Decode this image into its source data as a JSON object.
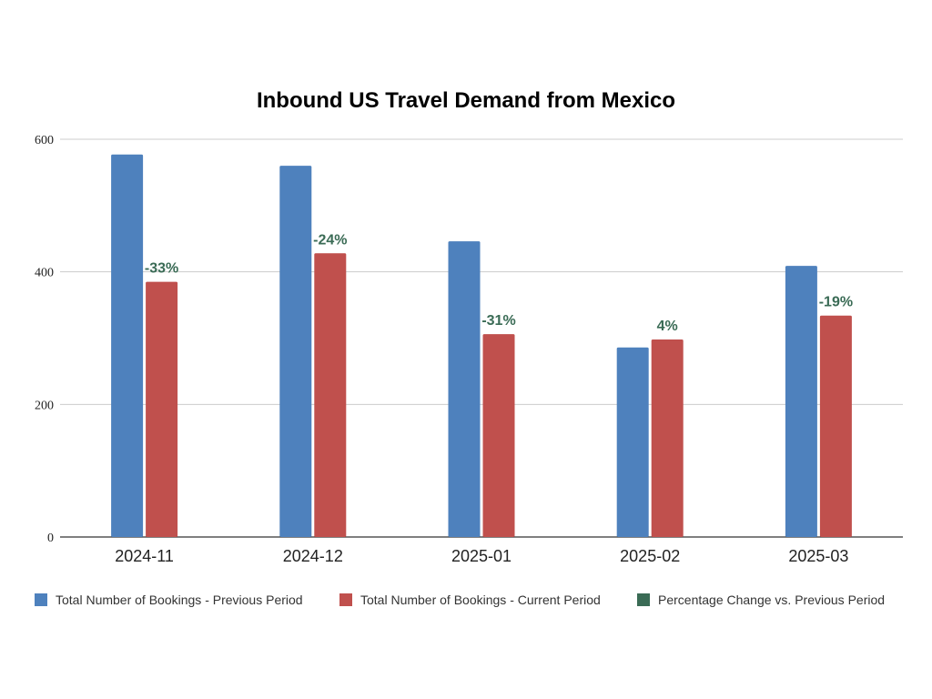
{
  "chart_data": {
    "type": "bar",
    "title": "Inbound US Travel Demand from Mexico",
    "xlabel": "",
    "ylabel": "",
    "categories": [
      "2024-11",
      "2024-12",
      "2025-01",
      "2025-02",
      "2025-03"
    ],
    "ylim": [
      0,
      600
    ],
    "yticks": [
      0,
      200,
      400,
      600
    ],
    "grid": true,
    "legend_position": "bottom",
    "series": [
      {
        "name": "Total Number of Bookings - Previous Period",
        "color": "#4e81bd",
        "values": [
          577,
          560,
          446,
          286,
          409
        ]
      },
      {
        "name": "Total Number of Bookings - Current Period",
        "color": "#c0504d",
        "values": [
          385,
          428,
          306,
          298,
          334
        ]
      },
      {
        "name": "Percentage Change vs. Previous Period",
        "color": "#3a6b55",
        "values": [
          -33,
          -24,
          -31,
          4,
          -19
        ]
      }
    ],
    "data_labels": [
      "-33%",
      "-24%",
      "-31%",
      "4%",
      "-19%"
    ]
  }
}
